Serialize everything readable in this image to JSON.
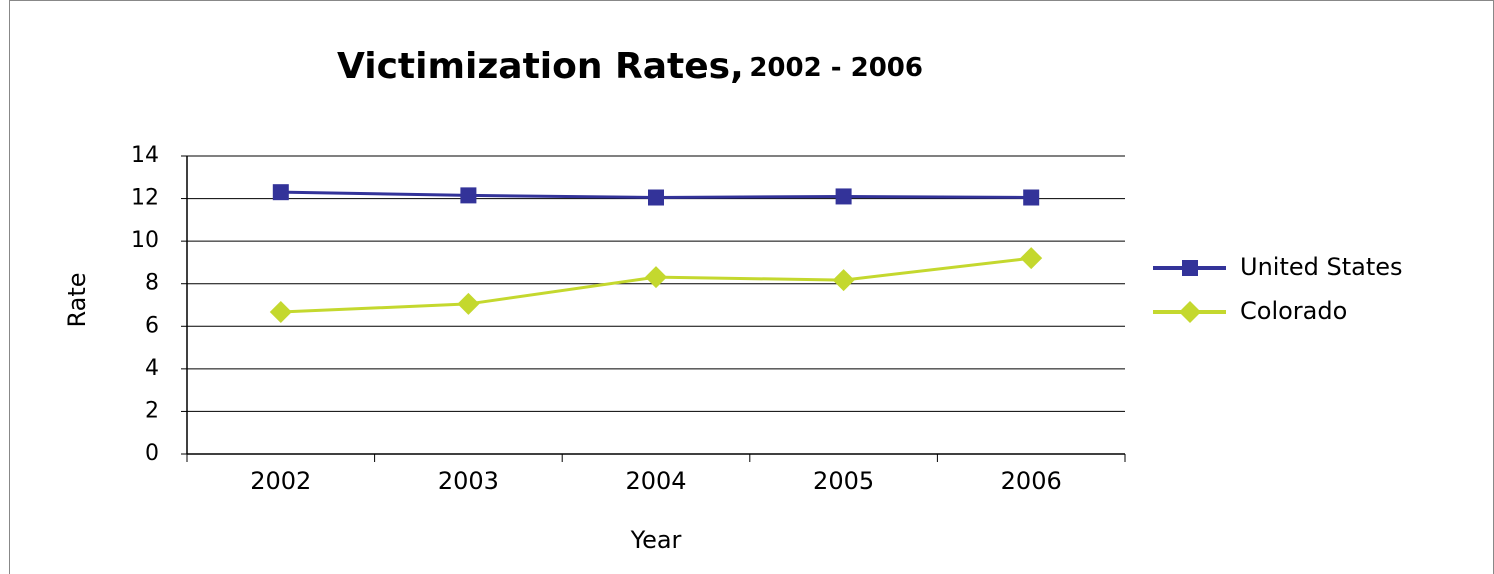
{
  "chart_data": {
    "type": "line",
    "title": "Victimization Rates,",
    "subtitle": "2002 - 2006",
    "x_label": "Year",
    "y_label": "Rate",
    "categories": [
      "2002",
      "2003",
      "2004",
      "2005",
      "2006"
    ],
    "series": [
      {
        "name": "United States",
        "color": "#333399",
        "marker": "square",
        "values": [
          12.3,
          12.15,
          12.05,
          12.1,
          12.05
        ]
      },
      {
        "name": "Colorado",
        "color": "#c4d82e",
        "marker": "diamond",
        "values": [
          6.67,
          7.05,
          8.31,
          8.17,
          9.2
        ]
      }
    ],
    "ylim": [
      0,
      14
    ],
    "yticks": [
      0,
      2,
      4,
      6,
      8,
      10,
      12,
      14
    ],
    "grid": true,
    "legend": "right"
  }
}
